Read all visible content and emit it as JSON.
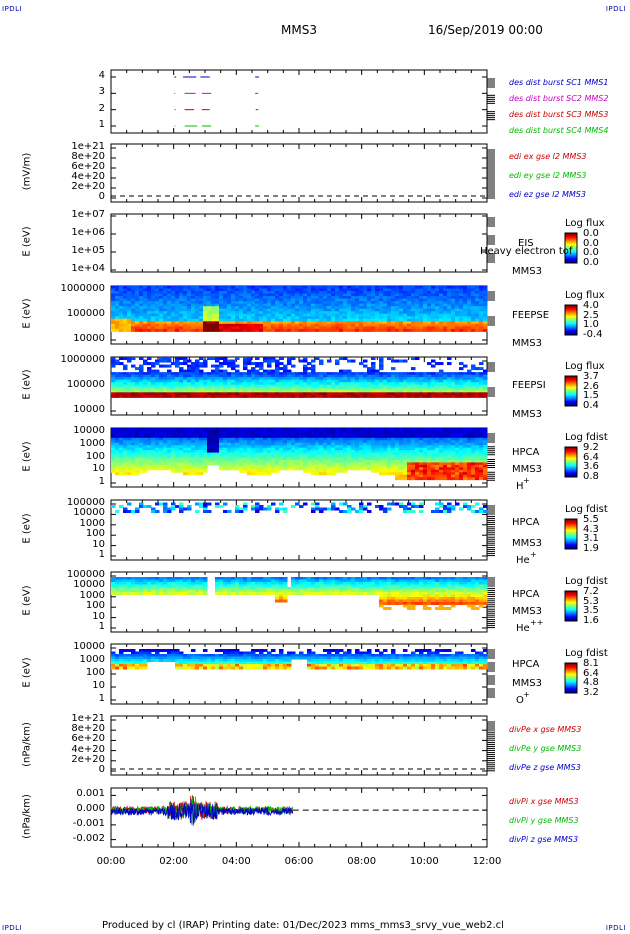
{
  "corners": {
    "tl": "IPDLI",
    "tr": "IPDLI",
    "bl": "IPDLI",
    "br": "IPDLI"
  },
  "header": {
    "spacecraft": "MMS3",
    "date": "16/Sep/2019 00:00"
  },
  "footer": {
    "text": "Produced by cl (IRAP)   Printing date: 01/Dec/2023   mms_mms3_srvy_vue_web2.cl"
  },
  "chart_data": [
    {
      "type": "scatter",
      "panel": "des-dist-burst",
      "yticks": [
        "4",
        "3",
        "2",
        "1"
      ],
      "series": [
        {
          "name": "des dist burst SC1 MMS1",
          "color": "#0000cc",
          "y": 4,
          "segments": [
            [
              2.02,
              2.08
            ],
            [
              2.3,
              2.72
            ],
            [
              2.85,
              3.15
            ],
            [
              4.6,
              4.72
            ]
          ]
        },
        {
          "name": "des dist burst SC2 MMS2",
          "color": "#cc00cc",
          "y": 3,
          "segments": [
            [
              2.02,
              2.05
            ],
            [
              2.35,
              2.7
            ],
            [
              2.9,
              3.2
            ],
            [
              4.6,
              4.7
            ]
          ]
        },
        {
          "name": "des dist burst SC3 MMS3",
          "color": "#cc0000",
          "y": 2,
          "segments": [
            [
              2.03,
              2.06
            ],
            [
              2.35,
              2.65
            ],
            [
              2.9,
              3.15
            ],
            [
              4.62,
              4.7
            ]
          ]
        },
        {
          "name": "des dist burst SC4 MMS4",
          "color": "#00bb00",
          "y": 1,
          "segments": [
            [
              2.02,
              2.05
            ],
            [
              2.35,
              2.75
            ],
            [
              2.9,
              3.2
            ],
            [
              4.6,
              4.72
            ]
          ]
        }
      ]
    },
    {
      "type": "line",
      "panel": "edi",
      "ylabel": "(mV/m)",
      "yticks": [
        "1e+21",
        "8e+20",
        "6e+20",
        "4e+20",
        "2e+20",
        "0"
      ],
      "series": [
        {
          "name": "edi ex gse l2 MMS3",
          "color": "#cc0000"
        },
        {
          "name": "edi ey gse l2 MMS3",
          "color": "#00bb00"
        },
        {
          "name": "edi ez gse l2 MMS3",
          "color": "#0000cc"
        }
      ]
    },
    {
      "type": "heatmap",
      "panel": "eis",
      "ylabel": "E (eV)",
      "yticks": [
        "1e+07",
        "1e+06",
        "1e+05",
        "1e+04"
      ],
      "instrument": "EIS",
      "spacecraft": "MMS3",
      "overlay_text": "Heavy electron tof",
      "cbar_title": "Log flux",
      "cbar_ticks": [
        "0.0",
        "0.0",
        "0.0",
        "0.0"
      ]
    },
    {
      "type": "heatmap",
      "panel": "feeps-e",
      "ylabel": "E (eV)",
      "yticks": [
        "1000000",
        "100000",
        "10000"
      ],
      "instrument": "FEEPSE",
      "spacecraft": "MMS3",
      "cbar_title": "Log flux",
      "cbar_ticks": [
        "4.0",
        "2.5",
        "1.0",
        "-0.4"
      ]
    },
    {
      "type": "heatmap",
      "panel": "feeps-i",
      "ylabel": "E (eV)",
      "yticks": [
        "1000000",
        "100000",
        "10000"
      ],
      "instrument": "FEEPSI",
      "spacecraft": "MMS3",
      "cbar_title": "Log flux",
      "cbar_ticks": [
        "3.7",
        "2.6",
        "1.5",
        "0.4"
      ]
    },
    {
      "type": "heatmap",
      "panel": "hpca-h",
      "ylabel": "E (eV)",
      "yticks": [
        "10000",
        "1000",
        "100",
        "10",
        "1"
      ],
      "instrument": "HPCA",
      "spacecraft": "MMS3",
      "species": "H",
      "charge": "+",
      "cbar_title": "Log fdist",
      "cbar_ticks": [
        "9.2",
        "6.4",
        "3.6",
        "0.8"
      ]
    },
    {
      "type": "heatmap",
      "panel": "hpca-he",
      "ylabel": "E (eV)",
      "yticks": [
        "100000",
        "10000",
        "1000",
        "100",
        "10",
        "1"
      ],
      "instrument": "HPCA",
      "spacecraft": "MMS3",
      "species": "He",
      "charge": "+",
      "cbar_title": "Log fdist",
      "cbar_ticks": [
        "5.5",
        "4.3",
        "3.1",
        "1.9"
      ]
    },
    {
      "type": "heatmap",
      "panel": "hpca-hepp",
      "ylabel": "E (eV)",
      "yticks": [
        "100000",
        "10000",
        "1000",
        "100",
        "10",
        "1"
      ],
      "instrument": "HPCA",
      "spacecraft": "MMS3",
      "species": "He",
      "charge": "++",
      "cbar_title": "Log fdist",
      "cbar_ticks": [
        "7.2",
        "5.3",
        "3.5",
        "1.6"
      ]
    },
    {
      "type": "heatmap",
      "panel": "hpca-o",
      "ylabel": "E (eV)",
      "yticks": [
        "10000",
        "1000",
        "100",
        "10",
        "1"
      ],
      "instrument": "HPCA",
      "spacecraft": "MMS3",
      "species": "O",
      "charge": "+",
      "cbar_title": "Log fdist",
      "cbar_ticks": [
        "8.1",
        "6.4",
        "4.8",
        "3.2"
      ]
    },
    {
      "type": "line",
      "panel": "divpe",
      "ylabel": "(nPa/km)",
      "yticks": [
        "1e+21",
        "8e+20",
        "6e+20",
        "4e+20",
        "2e+20",
        "0"
      ],
      "series": [
        {
          "name": "divPe x gse MMS3",
          "color": "#cc0000"
        },
        {
          "name": "divPe y gse MMS3",
          "color": "#00bb00"
        },
        {
          "name": "divPe z gse MMS3",
          "color": "#0000cc"
        }
      ]
    },
    {
      "type": "line",
      "panel": "divpi",
      "ylabel": "(nPa/km)",
      "yticks": [
        "0.001",
        "0.000",
        "-0.001",
        "-0.002"
      ],
      "ylim": [
        -0.0025,
        0.0015
      ],
      "xlim": [
        0,
        12
      ],
      "series": [
        {
          "name": "divPi x gse MMS3",
          "color": "#cc0000"
        },
        {
          "name": "divPi y gse MMS3",
          "color": "#00bb00"
        },
        {
          "name": "divPi z gse MMS3",
          "color": "#0000cc"
        }
      ],
      "data_end_hour": 5.8
    }
  ],
  "xaxis": {
    "ticks": [
      "00:00",
      "02:00",
      "04:00",
      "06:00",
      "08:00",
      "10:00",
      "12:00"
    ],
    "xlim": [
      0,
      12
    ]
  },
  "colors": {
    "frame": "#000000",
    "spec_top": "#0000cc"
  }
}
